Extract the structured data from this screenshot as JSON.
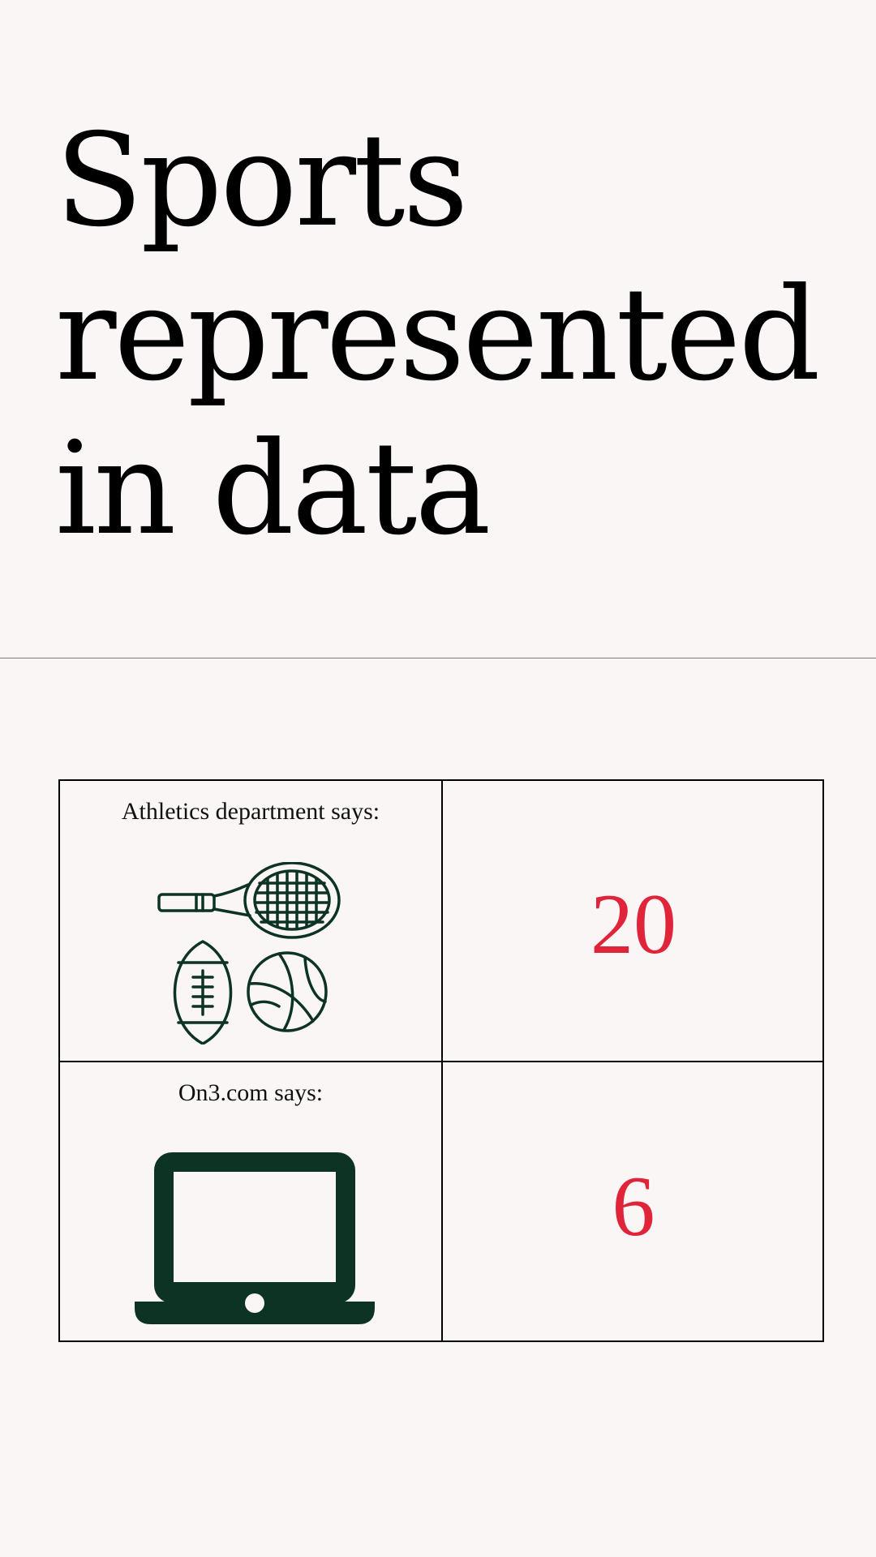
{
  "title": {
    "line1": "Sports",
    "line2": "represented",
    "line3": "in data"
  },
  "rows": [
    {
      "label": "Athletics department says:",
      "icon": "sports-equipment-icon",
      "value": "20"
    },
    {
      "label": "On3.com says:",
      "icon": "laptop-icon",
      "value": "6"
    }
  ],
  "colors": {
    "background": "#f9f6f5",
    "value": "#e0243a",
    "icon": "#0d3324",
    "border": "#000000"
  }
}
